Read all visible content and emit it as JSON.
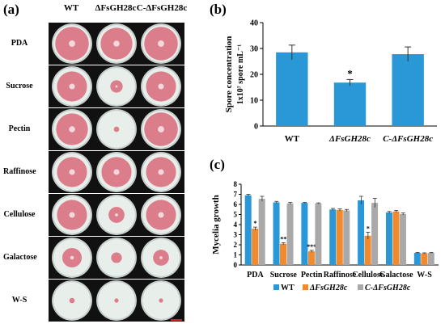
{
  "panel_labels": {
    "a": "(a)",
    "b": "(b)",
    "c": "(c)"
  },
  "plate_grid": {
    "columns": [
      "WT",
      "ΔFsGH28c",
      "C-ΔFsGH28c"
    ],
    "rows": [
      "PDA",
      "Sucrose",
      "Pectin",
      "Raffinose",
      "Cellulose",
      "Galactose",
      "W-S"
    ],
    "colony_size": [
      [
        0.95,
        0.9,
        0.95
      ],
      [
        0.85,
        0.35,
        0.85
      ],
      [
        0.9,
        0.15,
        0.95
      ],
      [
        0.85,
        0.85,
        0.85
      ],
      [
        0.85,
        0.45,
        0.85
      ],
      [
        0.55,
        0.3,
        0.45
      ],
      [
        0.15,
        0.12,
        0.12
      ]
    ],
    "colors": {
      "colony": "#d9707f",
      "agar": "#e8eeea",
      "dish_rim": "#c7cfcc",
      "background": "#111111",
      "scale_bar": "#e02020"
    }
  },
  "chart_data": [
    {
      "type": "bar",
      "panel": "(b)",
      "categories": [
        "WT",
        "ΔFsGH28c",
        "C-ΔFsGH28c"
      ],
      "values": [
        28.5,
        16.8,
        27.8
      ],
      "errors": [
        2.8,
        1.2,
        2.8
      ],
      "annotations": [
        "",
        "*",
        ""
      ],
      "ylabel_line1": "Spore concentration",
      "ylabel_line2": "1x10⁷ spore mL⁻¹",
      "ylim": [
        0,
        40
      ],
      "yticks": [
        0,
        10,
        20,
        30,
        40
      ],
      "color": "#2a98d6"
    },
    {
      "type": "bar",
      "panel": "(c)",
      "categories": [
        "PDA",
        "Sucrose",
        "Pectin",
        "Raffinose",
        "Cellulose",
        "Galactose",
        "W-S"
      ],
      "ylabel": "Mycelia growth",
      "ylim": [
        0,
        8
      ],
      "yticks": [
        0,
        1,
        2,
        3,
        4,
        5,
        6,
        7,
        8
      ],
      "series": [
        {
          "name": "WT",
          "color": "#2a98d6",
          "values": [
            6.9,
            6.2,
            6.15,
            5.5,
            6.4,
            5.2,
            1.2
          ],
          "errors": [
            0.1,
            0.1,
            0.05,
            0.1,
            0.4,
            0.1,
            0.05
          ]
        },
        {
          "name": "ΔFsGH28c",
          "color": "#f08a2c",
          "values": [
            3.6,
            2.1,
            1.35,
            5.45,
            2.9,
            5.3,
            1.15
          ],
          "errors": [
            0.15,
            0.1,
            0.1,
            0.1,
            0.35,
            0.1,
            0.05
          ]
        },
        {
          "name": "C-ΔFsGH28c",
          "color": "#a9a9a9",
          "values": [
            6.55,
            6.1,
            6.1,
            5.4,
            6.15,
            5.05,
            1.2
          ],
          "errors": [
            0.25,
            0.1,
            0.05,
            0.1,
            0.45,
            0.1,
            0.05
          ]
        }
      ],
      "annotations": [
        "*",
        "**",
        "***",
        "",
        "*",
        "",
        ""
      ]
    }
  ]
}
